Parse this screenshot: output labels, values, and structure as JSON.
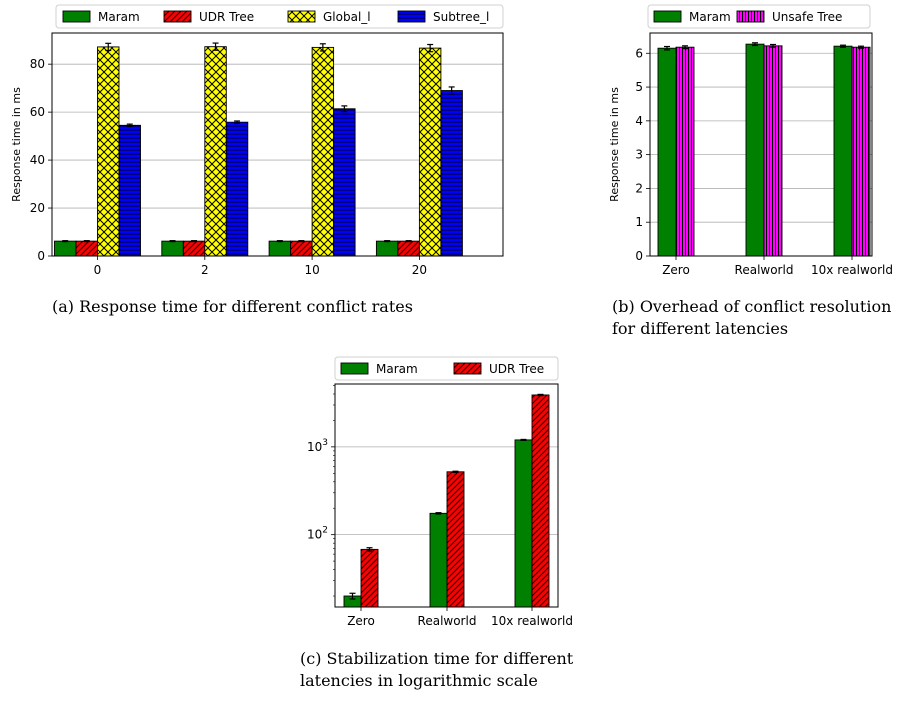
{
  "chart_data": [
    {
      "type": "bar",
      "caption": "(a) Response time for different conflict rates",
      "ylabel": "Response time in ms",
      "ylim": [
        0,
        93
      ],
      "yticks": [
        0,
        20,
        40,
        60,
        80
      ],
      "grid": "y",
      "legend_placement": "top",
      "categories": [
        "0",
        "2",
        "10",
        "20"
      ],
      "series": [
        {
          "name": "Maram",
          "values": [
            6.2,
            6.2,
            6.2,
            6.2
          ],
          "errors": [
            0.2,
            0.2,
            0.2,
            0.2
          ],
          "color": "#008000",
          "hatch": "none"
        },
        {
          "name": "UDR Tree",
          "values": [
            6.2,
            6.2,
            6.2,
            6.2
          ],
          "errors": [
            0.2,
            0.2,
            0.2,
            0.2
          ],
          "color": "#ff0000",
          "hatch": "diag"
        },
        {
          "name": "Global_l",
          "values": [
            87.2,
            87.3,
            87.0,
            86.7
          ],
          "errors": [
            1.5,
            1.5,
            1.5,
            1.5
          ],
          "color": "#ffff00",
          "hatch": "cross"
        },
        {
          "name": "Subtree_l",
          "values": [
            54.5,
            55.8,
            61.4,
            69.0
          ],
          "errors": [
            0.5,
            0.5,
            1.2,
            1.5
          ],
          "color": "#0000ff",
          "hatch": "horiz"
        }
      ]
    },
    {
      "type": "bar",
      "caption": "(b) Overhead of conflict resolution for different latencies",
      "ylabel": "Response time in ms",
      "ylim": [
        0,
        6.6
      ],
      "yticks": [
        0,
        1,
        2,
        3,
        4,
        5,
        6
      ],
      "grid": "y",
      "legend_placement": "top",
      "categories": [
        "Zero",
        "Realworld",
        "10x realworld"
      ],
      "series": [
        {
          "name": "Maram",
          "values": [
            6.15,
            6.27,
            6.21
          ],
          "errors": [
            0.05,
            0.04,
            0.03
          ],
          "color": "#008000",
          "hatch": "none"
        },
        {
          "name": "Unsafe Tree",
          "values": [
            6.18,
            6.22,
            6.18
          ],
          "errors": [
            0.04,
            0.04,
            0.03
          ],
          "color": "#ff00ff",
          "hatch": "vert"
        }
      ]
    },
    {
      "type": "bar",
      "caption": "(c) Stabilization time for different latencies in logarithmic scale",
      "ylabel": "",
      "yscale": "log",
      "ylim": [
        15,
        5200
      ],
      "yticks": [
        100,
        1000
      ],
      "grid": "y",
      "legend_placement": "top",
      "categories": [
        "Zero",
        "Realworld",
        "10x realworld"
      ],
      "series": [
        {
          "name": "Maram",
          "values": [
            20,
            175,
            1200
          ],
          "errors": [
            1.5,
            3,
            15
          ],
          "color": "#008000",
          "hatch": "none"
        },
        {
          "name": "UDR Tree",
          "values": [
            68,
            520,
            3900
          ],
          "errors": [
            3,
            8,
            60
          ],
          "color": "#ff0000",
          "hatch": "diag"
        }
      ]
    }
  ]
}
